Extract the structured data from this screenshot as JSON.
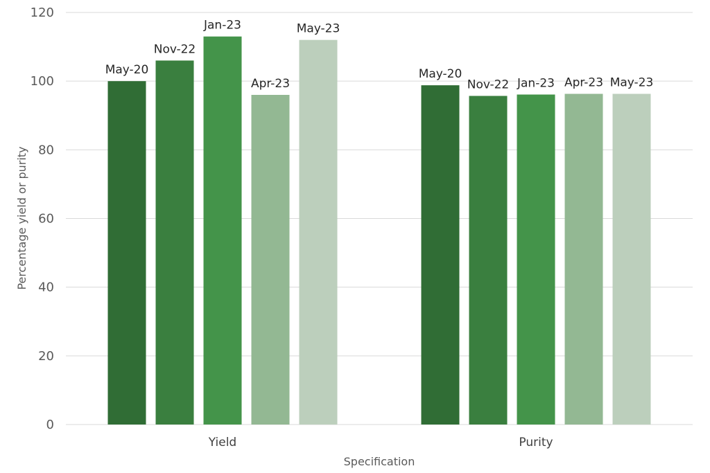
{
  "chart_data": {
    "type": "bar",
    "title": "",
    "xlabel": "Specification",
    "ylabel": "Percentage yield or purity",
    "ylim": [
      0,
      120
    ],
    "yticks": [
      0,
      20,
      40,
      60,
      80,
      100,
      120
    ],
    "grid": true,
    "legend": "none",
    "categories": [
      "Yield",
      "Purity"
    ],
    "series": [
      {
        "label": "May-20",
        "color": "#306d35",
        "values": [
          100,
          98.8
        ]
      },
      {
        "label": "Nov-22",
        "color": "#3a7f3f",
        "values": [
          106,
          95.7
        ]
      },
      {
        "label": "Jan-23",
        "color": "#44944a",
        "values": [
          113,
          96.1
        ]
      },
      {
        "label": "Apr-23",
        "color": "#93b893",
        "values": [
          96,
          96.3
        ]
      },
      {
        "label": "May-23",
        "color": "#bccfbc",
        "values": [
          112,
          96.3
        ]
      }
    ]
  }
}
